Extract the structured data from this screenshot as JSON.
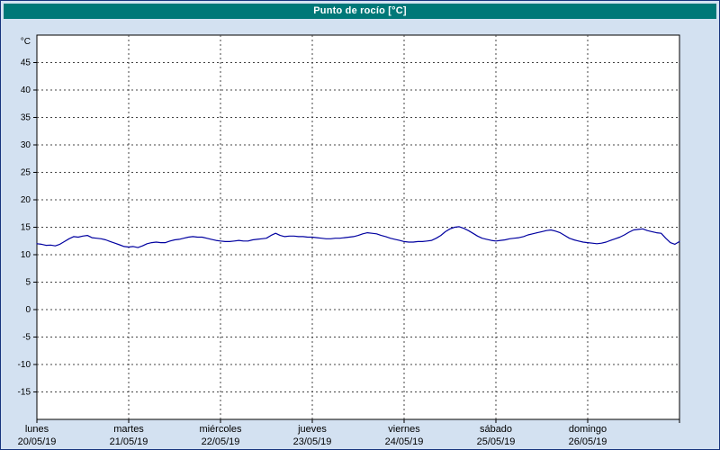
{
  "titlebar": {
    "title": "Punto de rocío [°C]"
  },
  "colors": {
    "titlebar_bg": "#007878",
    "titlebar_text": "#ffffff",
    "page_bg": "#d3e1f1",
    "plot_bg": "#ffffff",
    "border": "#17357d",
    "grid": "#444444",
    "axis": "#000000",
    "line": "#0000a0"
  },
  "chart_data": {
    "type": "line",
    "title": "Punto de rocío [°C]",
    "xlabel": "",
    "ylabel": "°C",
    "ylim": [
      -20,
      50
    ],
    "xlim": [
      0,
      7
    ],
    "grid": true,
    "legend_position": "none",
    "yticks": [
      45,
      40,
      35,
      30,
      25,
      20,
      15,
      10,
      5,
      0,
      -5,
      -10,
      -15
    ],
    "xticks": [
      {
        "day": "lunes",
        "date": "20/05/19"
      },
      {
        "day": "martes",
        "date": "21/05/19"
      },
      {
        "day": "miércoles",
        "date": "22/05/19"
      },
      {
        "day": "jueves",
        "date": "23/05/19"
      },
      {
        "day": "viernes",
        "date": "24/05/19"
      },
      {
        "day": "sábado",
        "date": "25/05/19"
      },
      {
        "day": "domingo",
        "date": "26/05/19"
      }
    ],
    "series": [
      {
        "name": "Punto de rocío",
        "color": "#0000a0",
        "x_start": 0,
        "x_step": 0.05,
        "values": [
          12.0,
          11.9,
          11.7,
          11.75,
          11.6,
          11.9,
          12.4,
          12.9,
          13.3,
          13.2,
          13.4,
          13.5,
          13.1,
          13.0,
          12.9,
          12.7,
          12.4,
          12.1,
          11.8,
          11.5,
          11.4,
          11.5,
          11.3,
          11.6,
          12.0,
          12.2,
          12.3,
          12.2,
          12.2,
          12.5,
          12.7,
          12.8,
          13.0,
          13.2,
          13.3,
          13.2,
          13.2,
          13.0,
          12.8,
          12.6,
          12.5,
          12.4,
          12.4,
          12.5,
          12.6,
          12.5,
          12.5,
          12.7,
          12.8,
          12.9,
          13.0,
          13.5,
          13.9,
          13.5,
          13.3,
          13.4,
          13.4,
          13.3,
          13.3,
          13.2,
          13.2,
          13.1,
          13.0,
          12.9,
          12.9,
          13.0,
          13.0,
          13.1,
          13.2,
          13.3,
          13.5,
          13.8,
          14.0,
          13.9,
          13.8,
          13.5,
          13.3,
          13.0,
          12.8,
          12.6,
          12.4,
          12.3,
          12.3,
          12.4,
          12.4,
          12.5,
          12.6,
          13.0,
          13.5,
          14.2,
          14.7,
          15.0,
          15.1,
          14.8,
          14.4,
          13.9,
          13.4,
          13.0,
          12.8,
          12.6,
          12.5,
          12.6,
          12.7,
          12.9,
          13.0,
          13.1,
          13.3,
          13.6,
          13.8,
          14.0,
          14.2,
          14.4,
          14.5,
          14.3,
          14.0,
          13.5,
          13.0,
          12.7,
          12.5,
          12.3,
          12.2,
          12.1,
          12.0,
          12.1,
          12.3,
          12.6,
          12.9,
          13.2,
          13.6,
          14.1,
          14.5,
          14.6,
          14.7,
          14.4,
          14.2,
          14.0,
          13.9,
          13.0,
          12.2,
          11.9,
          12.4
        ]
      }
    ]
  }
}
